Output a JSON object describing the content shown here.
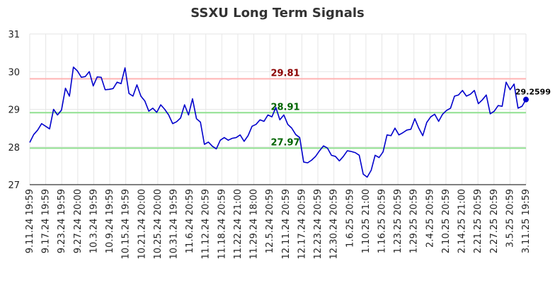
{
  "chart_data": {
    "type": "line",
    "title": "SSXU Long Term Signals",
    "xlabel": "",
    "ylabel": "",
    "ylim": [
      27,
      31
    ],
    "yticks": [
      27,
      28,
      29,
      30,
      31
    ],
    "grid": true,
    "x_tick_labels": [
      "9.11.24 19:59",
      "9.17.24 19:59",
      "9.23.24 19:59",
      "9.27.24 20:00",
      "10.3.24 19:59",
      "10.9.24 19:59",
      "10.15.24 19:59",
      "10.21.24 20:00",
      "10.25.24 20:00",
      "10.31.24 19:59",
      "11.6.24 20:59",
      "11.12.24 20:59",
      "11.18.24 20:59",
      "11.22.24 21:00",
      "11.29.24 18:00",
      "12.5.24 20:59",
      "12.11.24 20:59",
      "12.17.24 20:59",
      "12.23.24 20:59",
      "12.30.24 20:59",
      "1.6.25 20:59",
      "1.10.25 21:00",
      "1.16.25 20:59",
      "1.23.25 20:59",
      "1.29.25 20:59",
      "2.4.25 20:59",
      "2.10.25 20:59",
      "2.14.25 21:00",
      "2.21.25 20:59",
      "2.27.25 20:59",
      "3.5.25 20:59",
      "3.11.25 19:59"
    ],
    "reference_lines": [
      {
        "value": 29.81,
        "label": "29.81",
        "color": "#ffb3b3",
        "label_color": "#8b0000"
      },
      {
        "value": 28.91,
        "label": "28.91",
        "color": "#90e090",
        "label_color": "#006400"
      },
      {
        "value": 27.97,
        "label": "27.97",
        "color": "#90e090",
        "label_color": "#006400"
      }
    ],
    "series_color": "#0000cc",
    "last_value_label": "29.2599",
    "values": [
      28.12,
      28.33,
      28.45,
      28.62,
      28.55,
      28.48,
      29.0,
      28.85,
      28.98,
      29.56,
      29.35,
      30.12,
      30.02,
      29.85,
      29.87,
      30.0,
      29.62,
      29.86,
      29.85,
      29.52,
      29.53,
      29.55,
      29.72,
      29.68,
      30.1,
      29.42,
      29.35,
      29.65,
      29.35,
      29.22,
      28.95,
      29.03,
      28.92,
      29.12,
      29.0,
      28.85,
      28.62,
      28.67,
      28.77,
      29.12,
      28.85,
      29.28,
      28.75,
      28.66,
      28.07,
      28.13,
      28.02,
      27.95,
      28.18,
      28.25,
      28.18,
      28.23,
      28.25,
      28.32,
      28.15,
      28.3,
      28.55,
      28.6,
      28.72,
      28.68,
      28.85,
      28.8,
      29.05,
      28.72,
      28.85,
      28.6,
      28.5,
      28.33,
      28.25,
      27.6,
      27.58,
      27.65,
      27.75,
      27.9,
      28.03,
      27.97,
      27.78,
      27.75,
      27.63,
      27.75,
      27.9,
      27.88,
      27.85,
      27.78,
      27.28,
      27.2,
      27.38,
      27.78,
      27.72,
      27.87,
      28.32,
      28.3,
      28.5,
      28.32,
      28.38,
      28.45,
      28.47,
      28.75,
      28.5,
      28.3,
      28.65,
      28.8,
      28.87,
      28.68,
      28.87,
      28.97,
      29.03,
      29.35,
      29.38,
      29.5,
      29.35,
      29.4,
      29.5,
      29.15,
      29.25,
      29.38,
      28.88,
      28.95,
      29.1,
      29.08,
      29.72,
      29.52,
      29.67,
      29.03,
      29.08,
      29.26
    ]
  }
}
